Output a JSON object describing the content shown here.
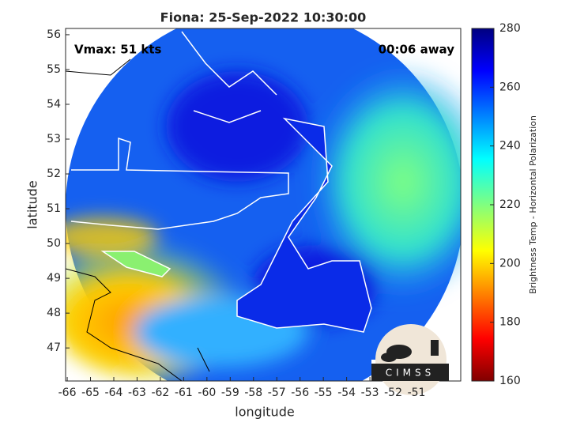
{
  "chart_data": {
    "type": "map",
    "title": "Fiona: 25-Sep-2022 10:30:00",
    "annotations": [
      "Vmax: 51 kts",
      "00:06 away"
    ],
    "logo": "CIMSS",
    "xlabel": "longitude",
    "ylabel": "latitude",
    "xlim": [
      -66.07,
      -49.1
    ],
    "xticks": [
      -66,
      -65,
      -64,
      -63,
      -62,
      -61,
      -60,
      -59,
      -58,
      -57,
      -56,
      -55,
      -54,
      -53,
      -52,
      -51
    ],
    "ylim": [
      46.05,
      56.18
    ],
    "yticks": [
      47,
      48,
      49,
      50,
      51,
      52,
      53,
      54,
      55,
      56
    ],
    "colorbar": {
      "label": "Brightness Temp - Horizontal Polarization",
      "lim": [
        160,
        280
      ],
      "ticks": [
        160,
        180,
        200,
        220,
        240,
        260,
        280
      ]
    }
  }
}
